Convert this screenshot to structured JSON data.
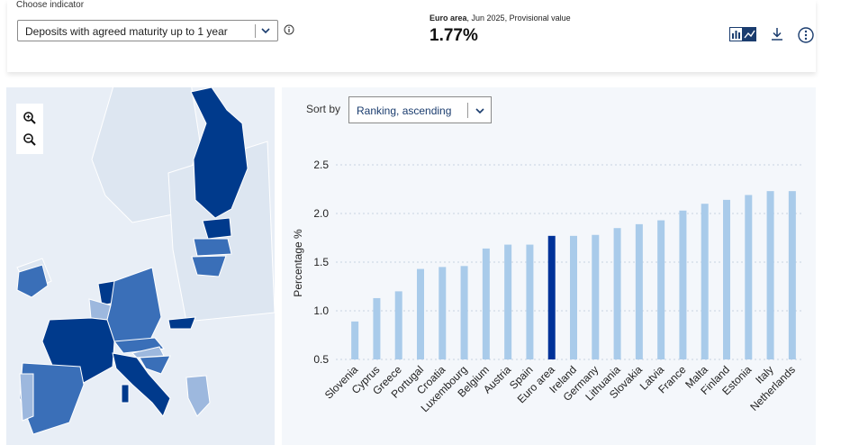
{
  "header": {
    "choose_label": "Choose indicator",
    "indicator_value": "Deposits with agreed maturity up to 1 year",
    "kpi_caption_bold": "Euro area",
    "kpi_caption_rest": ", Jun 2025, Provisional value",
    "kpi_value": "1.77%"
  },
  "toolbar": {
    "icons": [
      "chart-toggle-icon",
      "download-icon",
      "more-options-icon"
    ]
  },
  "map": {
    "zoom_in_icon": "zoom-in-icon",
    "zoom_out_icon": "zoom-out-icon"
  },
  "sort": {
    "label": "Sort by",
    "value": "Ranking, ascending"
  },
  "colors": {
    "bar": "#a9cbea",
    "highlight": "#003299",
    "dark_country": "#003a8c",
    "mid_country": "#3a6fb8",
    "light_country": "#9db8de",
    "map_bg": "#e8eef6"
  },
  "chart_data": {
    "type": "bar",
    "categories": [
      "Slovenia",
      "Cyprus",
      "Greece",
      "Portugal",
      "Croatia",
      "Luxembourg",
      "Belgium",
      "Austria",
      "Spain",
      "Euro area",
      "Ireland",
      "Germany",
      "Lithuania",
      "Slovakia",
      "Latvia",
      "France",
      "Malta",
      "Finland",
      "Estonia",
      "Italy",
      "Netherlands"
    ],
    "values": [
      0.89,
      1.13,
      1.2,
      1.43,
      1.45,
      1.46,
      1.64,
      1.68,
      1.68,
      1.77,
      1.77,
      1.78,
      1.85,
      1.89,
      1.93,
      2.03,
      2.1,
      2.14,
      2.19,
      2.23,
      2.23
    ],
    "highlight": "Euro area",
    "ylabel": "Percentage %",
    "ylim": [
      0.5,
      2.5
    ],
    "yticks": [
      "0.5",
      "1.0",
      "1.5",
      "2.0",
      "2.5"
    ],
    "grid": true
  }
}
